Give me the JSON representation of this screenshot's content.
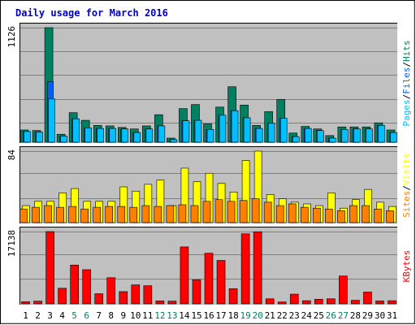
{
  "chart_data": {
    "type": "bar",
    "title": "Daily usage for March 2016",
    "categories": [
      "1",
      "2",
      "3",
      "4",
      "5",
      "6",
      "7",
      "8",
      "9",
      "10",
      "11",
      "12",
      "13",
      "14",
      "15",
      "16",
      "17",
      "18",
      "19",
      "20",
      "21",
      "22",
      "23",
      "24",
      "25",
      "26",
      "27",
      "28",
      "29",
      "30",
      "31"
    ],
    "weekend_days": [
      "5",
      "6",
      "12",
      "13",
      "19",
      "20",
      "26",
      "27"
    ],
    "panels": [
      {
        "id": "top",
        "ymax": 1126,
        "ymax_label": "1126",
        "right_label": [
          {
            "text": "Pages",
            "color": "#00c0ff"
          },
          {
            "text": "Files",
            "color": "#0060ff"
          },
          {
            "text": "Hits",
            "color": "#008060"
          }
        ],
        "series": [
          {
            "name": "Hits",
            "color": "#008060",
            "values": [
              120,
              115,
              1126,
              78,
              290,
              215,
              165,
              160,
              145,
              130,
              160,
              270,
              40,
              330,
              370,
              180,
              345,
              545,
              365,
              165,
              300,
              420,
              90,
              155,
              130,
              65,
              150,
              150,
              150,
              190,
              120
            ]
          },
          {
            "name": "Files",
            "color": "#0060ff",
            "values": [
              105,
              100,
              595,
              60,
              230,
              140,
              135,
              135,
              130,
              95,
              130,
              160,
              25,
              210,
              215,
              125,
              265,
              310,
              240,
              135,
              185,
              235,
              55,
              135,
              115,
              40,
              125,
              130,
              130,
              165,
              95
            ]
          },
          {
            "name": "Pages",
            "color": "#00c0ff",
            "values": [
              105,
              100,
              425,
              60,
              230,
              140,
              135,
              135,
              130,
              95,
              130,
              160,
              25,
              210,
              215,
              125,
              265,
              310,
              240,
              135,
              185,
              235,
              55,
              135,
              115,
              40,
              125,
              130,
              130,
              165,
              95
            ]
          }
        ]
      },
      {
        "id": "middle",
        "ymax": 84,
        "ymax_label": "84",
        "right_label": [
          {
            "text": "Sites",
            "color": "#ff8000"
          },
          {
            "text": "Visits",
            "color": "#ffff00"
          }
        ],
        "series": [
          {
            "name": "Visits",
            "color": "#ffff00",
            "values": [
              20,
              25,
              25,
              35,
              40,
              25,
              25,
              25,
              42,
              37,
              45,
              50,
              20,
              64,
              48,
              58,
              46,
              36,
              73,
              84,
              33,
              28,
              24,
              22,
              20,
              35,
              17,
              27,
              39,
              24,
              19
            ]
          },
          {
            "name": "Sites",
            "color": "#ff8000",
            "values": [
              16,
              18,
              20,
              18,
              19,
              16,
              18,
              19,
              19,
              18,
              20,
              19,
              20,
              21,
              20,
              25,
              27,
              25,
              26,
              28,
              24,
              20,
              22,
              18,
              17,
              16,
              14,
              20,
              20,
              16,
              14
            ]
          }
        ]
      },
      {
        "id": "bottom",
        "ymax": 17138,
        "ymax_label": "17138",
        "right_label": [
          {
            "text": "KBytes",
            "color": "#ff0000"
          }
        ],
        "series": [
          {
            "name": "KBytes",
            "color": "#ff0000",
            "values": [
              500,
              640,
              17138,
              3700,
              9200,
              8100,
              2400,
              6200,
              2900,
              4500,
              4300,
              700,
              650,
              13500,
              5700,
              12000,
              10300,
              3600,
              16600,
              17100,
              1200,
              450,
              2300,
              750,
              1100,
              1200,
              6600,
              850,
              2800,
              690,
              750
            ]
          }
        ]
      }
    ]
  }
}
